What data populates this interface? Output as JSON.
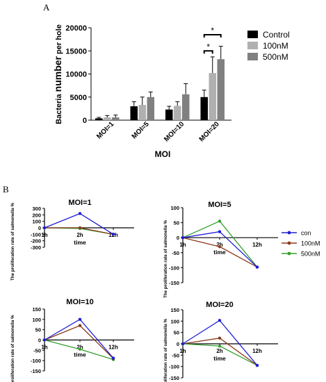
{
  "panel_labels": {
    "a": "A",
    "b": "B"
  },
  "chart_data": [
    {
      "panel": "A",
      "type": "bar",
      "ylabel_prefix": "Bacteria ",
      "ylabel_bold": "number",
      "ylabel_suffix": " per hole",
      "xlabel": "MOI",
      "ylim": [
        0,
        20000
      ],
      "yticks": [
        "0",
        "5000",
        "10000",
        "15000",
        "20000"
      ],
      "categories": [
        "MOI=1",
        "MOI=5",
        "MOI=10",
        "MOI=20"
      ],
      "legend_position": "top-right",
      "series": [
        {
          "name": "Control",
          "color": "#000000",
          "values": [
            400,
            3000,
            2300,
            5000
          ],
          "errors": [
            200,
            1000,
            700,
            1500
          ]
        },
        {
          "name": "100nM",
          "color": "#b0b0b0",
          "values": [
            600,
            3300,
            3100,
            10200
          ],
          "errors": [
            400,
            1700,
            900,
            3500
          ]
        },
        {
          "name": "500nM",
          "color": "#808080",
          "values": [
            600,
            5000,
            5600,
            13200
          ],
          "errors": [
            500,
            1100,
            2300,
            2800
          ]
        }
      ],
      "significance_marks": [
        "*",
        "*"
      ]
    },
    {
      "panel": "B",
      "type": "line",
      "legend_position": "right",
      "series_meta": [
        {
          "name": "con",
          "color": "#1f1fd6"
        },
        {
          "name": "100nM",
          "color": "#8b3a1a"
        },
        {
          "name": "500nM",
          "color": "#33a02c"
        }
      ],
      "subplots": [
        {
          "title": "MOI=1",
          "ylabel": "The proliferation rate of salmonella %",
          "xlabel": "time",
          "x": [
            "1h",
            "2h",
            "12h"
          ],
          "ylim": [
            -300,
            300
          ],
          "yticks": [
            "-300",
            "-200",
            "-100",
            "0",
            "100",
            "200",
            "300"
          ],
          "values": {
            "con": [
              0,
              220,
              -100
            ],
            "100nM": [
              0,
              0,
              -100
            ],
            "500nM": [
              0,
              -10,
              -100
            ]
          }
        },
        {
          "title": "MOI=5",
          "ylabel": "The proliferation rate of salmonella %",
          "xlabel": "time",
          "x": [
            "1h",
            "2h",
            "12h"
          ],
          "ylim": [
            -150,
            100
          ],
          "yticks": [
            "-150",
            "-100",
            "-50",
            "0",
            "50",
            "100"
          ],
          "values": {
            "con": [
              0,
              20,
              -98
            ],
            "100nM": [
              0,
              -30,
              -98
            ],
            "500nM": [
              0,
              55,
              -98
            ]
          }
        },
        {
          "title": "MOI=10",
          "ylabel": "The proliferation rate of salmonella %",
          "xlabel": "time",
          "x": [
            "1h",
            "2h",
            "12h"
          ],
          "ylim": [
            -150,
            150
          ],
          "yticks": [
            "-150",
            "-100",
            "-50",
            "0",
            "50",
            "100",
            "150"
          ],
          "values": {
            "con": [
              0,
              100,
              -88
            ],
            "100nM": [
              0,
              70,
              -90
            ],
            "500nM": [
              0,
              -45,
              -95
            ]
          }
        },
        {
          "title": "MOI=20",
          "ylabel": "The proliferation rate of salmonella %",
          "xlabel": "time",
          "x": [
            "1h",
            "2h",
            "12h"
          ],
          "ylim": [
            -150,
            150
          ],
          "yticks": [
            "-150",
            "-100",
            "-50",
            "0",
            "50",
            "100",
            "150"
          ],
          "values": {
            "con": [
              0,
              103,
              -95
            ],
            "100nM": [
              0,
              25,
              -95
            ],
            "500nM": [
              0,
              -10,
              -95
            ]
          }
        }
      ]
    }
  ]
}
